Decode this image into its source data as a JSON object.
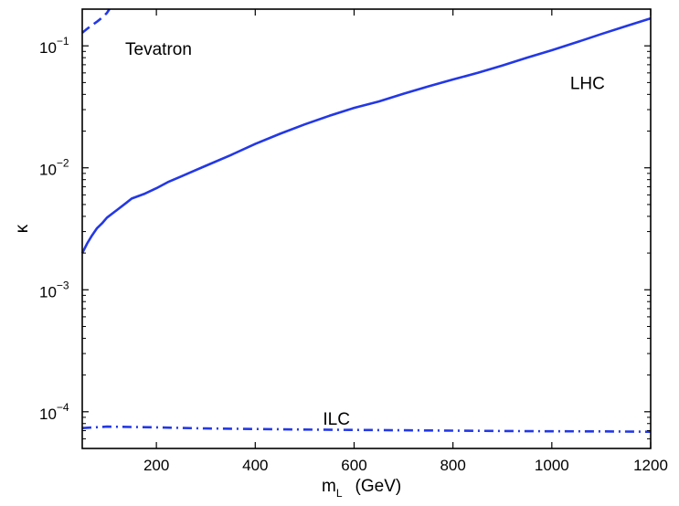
{
  "chart_data": {
    "type": "line",
    "title": "",
    "xlabel_main": "m",
    "xlabel_sub": "L",
    "xlabel_units": "(GeV)",
    "ylabel": "κ",
    "yscale": "log",
    "xlim": [
      50,
      1200
    ],
    "ylim": [
      5e-05,
      0.2
    ],
    "xticks": [
      200,
      400,
      600,
      800,
      1000,
      1200
    ],
    "xtick_labels": [
      "200",
      "400",
      "600",
      "800",
      "1000",
      "1200"
    ],
    "yticks": [
      0.0001,
      0.001,
      0.01,
      0.1
    ],
    "ytick_labels": [
      {
        "base": "10",
        "exp": "−4"
      },
      {
        "base": "10",
        "exp": "−3"
      },
      {
        "base": "10",
        "exp": "−2"
      },
      {
        "base": "10",
        "exp": "−1"
      }
    ],
    "color": "#2338e6",
    "annotations": [
      {
        "text": "Tevatron",
        "x": 100,
        "y": 0.095
      },
      {
        "text": "LHC",
        "x": 1000,
        "y": 0.05
      },
      {
        "text": "ILC",
        "x": 500,
        "y": 8.8e-05
      }
    ],
    "series": [
      {
        "name": "LHC",
        "style": "solid",
        "x": [
          50,
          60,
          70,
          80,
          90,
          100,
          120,
          140,
          150,
          175,
          200,
          225,
          250,
          275,
          300,
          350,
          400,
          450,
          500,
          550,
          600,
          650,
          700,
          750,
          800,
          850,
          900,
          950,
          1000,
          1050,
          1100,
          1150,
          1200
        ],
        "y": [
          0.002,
          0.0024,
          0.0028,
          0.0032,
          0.0035,
          0.0039,
          0.0045,
          0.0052,
          0.0056,
          0.0061,
          0.0068,
          0.0077,
          0.0085,
          0.0094,
          0.0104,
          0.0127,
          0.0157,
          0.019,
          0.0227,
          0.0267,
          0.031,
          0.035,
          0.0405,
          0.0465,
          0.053,
          0.06,
          0.069,
          0.08,
          0.092,
          0.107,
          0.125,
          0.145,
          0.168
        ]
      },
      {
        "name": "Tevatron",
        "style": "dashed",
        "x": [
          50,
          60,
          70,
          80,
          90,
          100,
          105
        ],
        "y": [
          0.128,
          0.138,
          0.148,
          0.158,
          0.17,
          0.186,
          0.2
        ]
      },
      {
        "name": "ILC",
        "style": "dashdot",
        "x": [
          50,
          100,
          200,
          300,
          400,
          500,
          600,
          700,
          800,
          900,
          1000,
          1100,
          1200
        ],
        "y": [
          7.35e-05,
          7.55e-05,
          7.45e-05,
          7.3e-05,
          7.22e-05,
          7.15e-05,
          7.1e-05,
          7.05e-05,
          7e-05,
          6.95e-05,
          6.92e-05,
          6.9e-05,
          6.85e-05
        ]
      }
    ]
  }
}
